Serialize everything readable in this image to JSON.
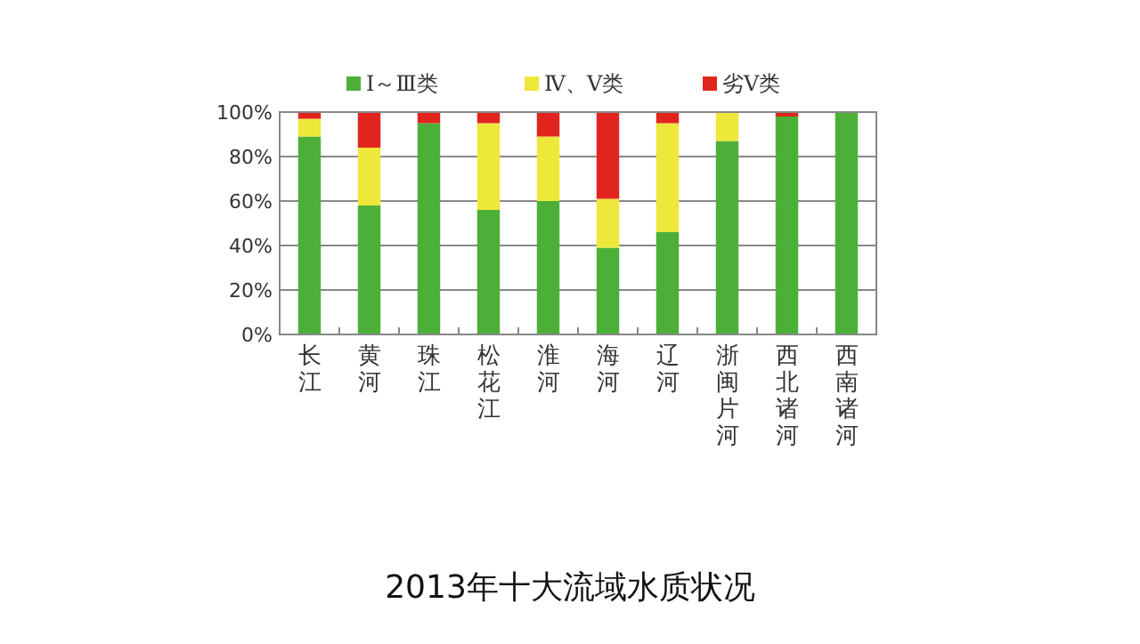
{
  "chart_data": {
    "type": "bar",
    "stacked": true,
    "title": "2013年十大流域水质状况",
    "categories": [
      "长江",
      "黄河",
      "珠江",
      "松花江",
      "淮河",
      "海河",
      "辽河",
      "浙闽片河",
      "西北诸河",
      "西南诸河"
    ],
    "series": [
      {
        "name": "Ⅰ～Ⅲ类",
        "color": "#4cb038",
        "values": [
          89,
          58,
          95,
          56,
          60,
          39,
          46,
          87,
          98,
          100
        ]
      },
      {
        "name": "Ⅳ、Ⅴ类",
        "color": "#eee83a",
        "values": [
          8,
          26,
          0,
          39,
          29,
          22,
          49,
          13,
          0,
          0
        ]
      },
      {
        "name": "劣Ⅴ类",
        "color": "#e1251e",
        "values": [
          3,
          16,
          5,
          5,
          11,
          39,
          5,
          0,
          2,
          0
        ]
      }
    ],
    "ylim": [
      0,
      100
    ],
    "yticks": [
      {
        "value": 0,
        "label": "0%"
      },
      {
        "value": 20,
        "label": "20%"
      },
      {
        "value": 40,
        "label": "40%"
      },
      {
        "value": 60,
        "label": "60%"
      },
      {
        "value": 80,
        "label": "80%"
      },
      {
        "value": 100,
        "label": "100%"
      }
    ],
    "grid": "y",
    "legend": "top"
  }
}
